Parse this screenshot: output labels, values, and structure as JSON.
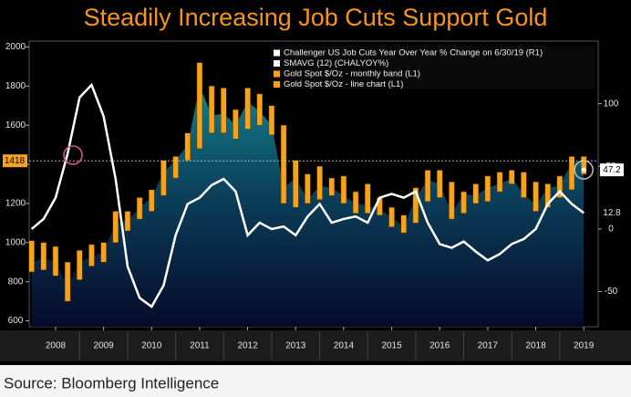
{
  "chart_data": {
    "type": "combo",
    "title": "Steadily Increasing Job Cuts Support Gold",
    "source": "Source: Bloomberg Intelligence",
    "x": [
      2008,
      2008.25,
      2008.5,
      2008.75,
      2009,
      2009.25,
      2009.5,
      2009.75,
      2010,
      2010.25,
      2010.5,
      2010.75,
      2011,
      2011.25,
      2011.5,
      2011.75,
      2012,
      2012.25,
      2012.5,
      2012.75,
      2013,
      2013.25,
      2013.5,
      2013.75,
      2014,
      2014.25,
      2014.5,
      2014.75,
      2015,
      2015.25,
      2015.5,
      2015.75,
      2016,
      2016.25,
      2016.5,
      2016.75,
      2017,
      2017.25,
      2017.5,
      2017.75,
      2018,
      2018.25,
      2018.5,
      2018.75,
      2019,
      2019.25,
      2019.5
    ],
    "xlim": [
      2007.95,
      2019.8
    ],
    "xticks": [
      {
        "value": 2008.5,
        "label": "2008"
      },
      {
        "value": 2009.5,
        "label": "2009"
      },
      {
        "value": 2010.5,
        "label": "2010"
      },
      {
        "value": 2011.5,
        "label": "2011"
      },
      {
        "value": 2012.5,
        "label": "2012"
      },
      {
        "value": 2013.5,
        "label": "2013"
      },
      {
        "value": 2014.5,
        "label": "2014"
      },
      {
        "value": 2015.5,
        "label": "2015"
      },
      {
        "value": 2016.5,
        "label": "2016"
      },
      {
        "value": 2017.5,
        "label": "2017"
      },
      {
        "value": 2018.5,
        "label": "2018"
      },
      {
        "value": 2019.5,
        "label": "2019"
      }
    ],
    "ylim": [
      570,
      2030
    ],
    "yticks": [
      600,
      800,
      1000,
      1200,
      1400,
      1600,
      1800,
      2000
    ],
    "y2lim": [
      -78,
      150
    ],
    "y2ticks": [
      -50,
      0,
      50,
      100
    ],
    "series": [
      {
        "name": "Challenger US Job Cuts Year Over Year % Change  on 6/30/19 (R1)",
        "color": "#ffffff",
        "axis": "y2",
        "kind": "point",
        "values": [
          null,
          null,
          null,
          null,
          null,
          null,
          null,
          null,
          null,
          null,
          null,
          null,
          null,
          null,
          null,
          null,
          null,
          null,
          null,
          null,
          null,
          null,
          null,
          null,
          null,
          null,
          null,
          null,
          null,
          null,
          null,
          null,
          null,
          null,
          null,
          null,
          null,
          null,
          null,
          null,
          null,
          null,
          null,
          null,
          null,
          null,
          47.2
        ]
      },
      {
        "name": "SMAVG (12)  (CHALYOY%)",
        "color": "#ffffff",
        "axis": "y2",
        "kind": "line",
        "values": [
          0,
          8,
          25,
          60,
          105,
          115,
          90,
          40,
          -30,
          -55,
          -62,
          -45,
          -5,
          20,
          25,
          35,
          40,
          30,
          -5,
          5,
          0,
          2,
          -5,
          10,
          20,
          5,
          8,
          10,
          5,
          25,
          28,
          25,
          30,
          5,
          -12,
          -15,
          -10,
          -18,
          -25,
          -20,
          -12,
          -8,
          0,
          20,
          30,
          20,
          12.8
        ]
      },
      {
        "name": "Gold Spot $/Oz - monthly band (L1)",
        "color": "#f7a21b",
        "kind": "band",
        "low": [
          850,
          860,
          830,
          700,
          810,
          880,
          900,
          1000,
          1060,
          1120,
          1160,
          1240,
          1330,
          1420,
          1480,
          1560,
          1560,
          1530,
          1580,
          1600,
          1550,
          1200,
          1180,
          1200,
          1220,
          1240,
          1200,
          1150,
          1150,
          1140,
          1080,
          1050,
          1100,
          1210,
          1230,
          1120,
          1150,
          1200,
          1210,
          1260,
          1300,
          1230,
          1160,
          1180,
          1230,
          1270,
          1350
        ],
        "high": [
          1010,
          1000,
          980,
          900,
          960,
          990,
          1000,
          1160,
          1160,
          1230,
          1270,
          1420,
          1440,
          1560,
          1920,
          1800,
          1790,
          1680,
          1790,
          1760,
          1700,
          1600,
          1420,
          1350,
          1390,
          1330,
          1340,
          1260,
          1300,
          1230,
          1180,
          1140,
          1280,
          1370,
          1370,
          1310,
          1260,
          1300,
          1340,
          1360,
          1370,
          1360,
          1310,
          1300,
          1340,
          1440,
          1440
        ]
      },
      {
        "name": "Gold Spot $/Oz - line chart (L1)",
        "color": "#f7a21b",
        "kind": "area",
        "values": [
          900,
          920,
          900,
          780,
          900,
          930,
          950,
          1100,
          1110,
          1180,
          1230,
          1360,
          1420,
          1500,
          1800,
          1650,
          1660,
          1600,
          1720,
          1670,
          1600,
          1280,
          1330,
          1220,
          1290,
          1280,
          1240,
          1200,
          1190,
          1170,
          1130,
          1080,
          1230,
          1320,
          1300,
          1150,
          1250,
          1240,
          1280,
          1300,
          1330,
          1250,
          1190,
          1280,
          1290,
          1410,
          1418
        ]
      }
    ]
  }
}
